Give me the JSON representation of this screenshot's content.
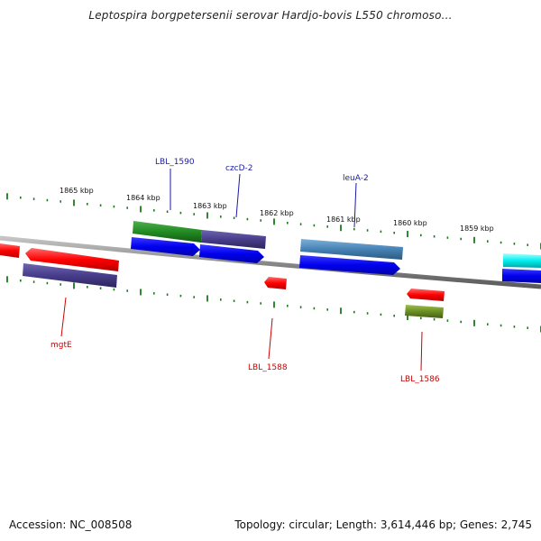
{
  "title": "Leptospira borgpetersenii serovar Hardjo-bovis L550 chromoso...",
  "footer": {
    "accession": "Accession: NC_008508",
    "summary": "Topology: circular; Length: 3,614,446 bp; Genes: 2,745"
  },
  "ruler": {
    "ticks": [
      "1865 kbp",
      "1864 kbp",
      "1863 kbp",
      "1862 kbp",
      "1861 kbp",
      "1860 kbp",
      "1859 kbp"
    ]
  },
  "colors": {
    "backbone": "#8a8a8a",
    "tick": "#1a7a1a",
    "label_forward": "#1a1aa8",
    "label_reverse": "#cc0000"
  },
  "genes": [
    {
      "name": "mgtE",
      "strand": "reverse",
      "color": "#ff0000"
    },
    {
      "name": "LBL_1590",
      "strand": "forward",
      "color": "#228b22"
    },
    {
      "name": "czcD-2",
      "strand": "forward",
      "color": "#483d8b"
    },
    {
      "name": "LBL_1588",
      "strand": "reverse",
      "color": "#ff0000"
    },
    {
      "name": "leuA-2",
      "strand": "forward",
      "color": "#4682b4"
    },
    {
      "name": "LBL_1586",
      "strand": "reverse",
      "color": "#6b8e23"
    }
  ],
  "labels": {
    "LBL_1590": "LBL_1590",
    "czcD-2": "czcD-2",
    "leuA-2": "leuA-2",
    "mgtE": "mgtE",
    "LBL_1588": "LBL_1588",
    "LBL_1586": "LBL_1586"
  }
}
